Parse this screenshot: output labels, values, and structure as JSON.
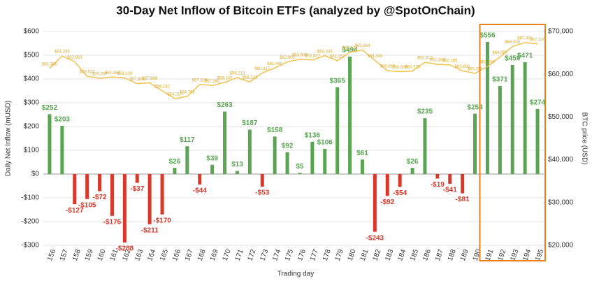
{
  "chart_data": {
    "type": "bar",
    "title": "30-Day Net Inflow of Bitcoin ETFs (analyzed by @SpotOnChain)",
    "x_label": "Trading day",
    "y_label": "Daily Net Inflow (mUSD)",
    "y2_label": "BTC price (USD)",
    "categories": [
      "156",
      "157",
      "158",
      "159",
      "160",
      "161",
      "162",
      "163",
      "164",
      "165",
      "166",
      "167",
      "168",
      "169",
      "170",
      "171",
      "172",
      "173",
      "174",
      "175",
      "176",
      "177",
      "178",
      "179",
      "180",
      "181",
      "182",
      "183",
      "184",
      "185",
      "186",
      "187",
      "188",
      "189",
      "190",
      "191",
      "192",
      "193",
      "194",
      "195"
    ],
    "series": [
      {
        "type": "bar",
        "color": "#5aa552",
        "negative_color": "#d8392b",
        "values": [
          252,
          203,
          -127,
          -105,
          -72,
          -176,
          -288,
          -37,
          -211,
          -170,
          26,
          117,
          -44,
          39,
          263,
          13,
          187,
          -53,
          158,
          92,
          5,
          136,
          106,
          365,
          494,
          61,
          -243,
          -92,
          -54,
          26,
          235,
          -19,
          -41,
          -81,
          254,
          556,
          371,
          459,
          471,
          274
        ],
        "value_labels": [
          "$252",
          "$203",
          "-$127",
          "-$105",
          "-$72",
          "-$176",
          "-$288",
          "-$37",
          "-$211",
          "-$170",
          "$26",
          "$117",
          "-$44",
          "$39",
          "$263",
          "$13",
          "$187",
          "-$53",
          "$158",
          "$92",
          "$5",
          "$136",
          "$106",
          "$365",
          "$494",
          "$61",
          "-$243",
          "-$92",
          "-$54",
          "$26",
          "$235",
          "-$19",
          "-$41",
          "-$81",
          "$254",
          "$556",
          "$371",
          "$459",
          "$471",
          "$274"
        ]
      },
      {
        "type": "line",
        "axis": "y2",
        "color": "#f2c24f",
        "values": [
          61386,
          64266,
          62923,
          59527,
          59057,
          59350,
          59109,
          57800,
          57988,
          56132,
          54310,
          54792,
          57620,
          57360,
          58107,
          59213,
          58211,
          60317,
          61440,
          62900,
          63500,
          63327,
          64334,
          63152,
          65134,
          65664,
          63243,
          60830,
          60600,
          60728,
          62810,
          62300,
          62185,
          60800,
          60200,
          61830,
          64050,
          66500,
          67400,
          67100
        ],
        "value_labels": [
          "$61,386",
          "$64,266",
          "$62,923",
          "$59,527",
          "$59,057",
          "$59,350",
          "$59,109",
          "$57,800",
          "$57,988",
          "$56,132",
          "$54,310",
          "$54,792",
          "$57,620",
          "$57,360",
          "$58,107",
          "$59,213",
          "$58,211",
          "$60,317",
          "$61,440",
          "$62,900",
          "$63,500",
          "$63,327",
          "$64,334",
          "$63,152",
          "$65,134",
          "$65,664",
          "$63,243",
          "$60,830",
          "$60,600",
          "$60,728",
          "$62,810",
          "$62,300",
          "$62,185",
          "$60,800",
          "$60,200",
          "$61,830",
          "$64,050",
          "$66,500",
          "$67,400",
          "$67,100"
        ]
      }
    ],
    "ylim": [
      -300,
      600
    ],
    "yticks": [
      {
        "value": -300,
        "label": "-$300"
      },
      {
        "value": -200,
        "label": "-$200"
      },
      {
        "value": -100,
        "label": "-$100"
      },
      {
        "value": 0,
        "label": "$0"
      },
      {
        "value": 100,
        "label": "$100"
      },
      {
        "value": 200,
        "label": "$200"
      },
      {
        "value": 300,
        "label": "$300"
      },
      {
        "value": 400,
        "label": "$400"
      },
      {
        "value": 500,
        "label": "$500"
      },
      {
        "value": 600,
        "label": "$600"
      }
    ],
    "y2lim": [
      20000,
      70000
    ],
    "y2ticks": [
      {
        "value": 20000,
        "label": "$20,000"
      },
      {
        "value": 30000,
        "label": "$30,000"
      },
      {
        "value": 40000,
        "label": "$40,000"
      },
      {
        "value": 50000,
        "label": "$50,000"
      },
      {
        "value": 60000,
        "label": "$60,000"
      },
      {
        "value": 70000,
        "label": "$70,000"
      }
    ],
    "grid": true,
    "highlight": {
      "from": "191",
      "to": "195",
      "color": "#f07f1c"
    }
  }
}
